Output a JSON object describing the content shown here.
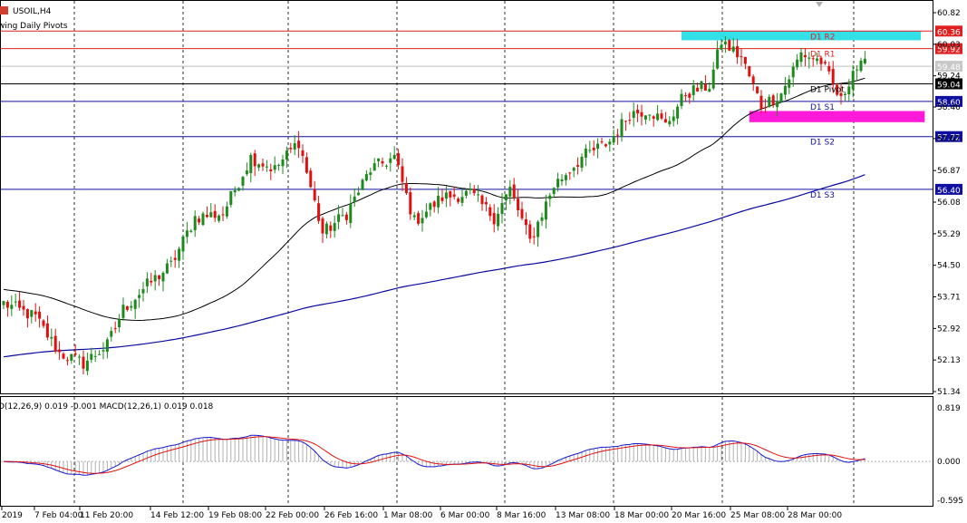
{
  "header": {
    "symbol": "USOIL,H4",
    "indicator": "wing Daily Pivots"
  },
  "macd_header": "D(12,26,9) 0.019 -0.001 MACD(12,26,1) 0.019 0.018",
  "colors": {
    "up": "#1e8a1e",
    "down": "#e01010",
    "ma_fast": "#000000",
    "ma_slow": "#0a0aa0",
    "resistance": "#e02020",
    "support": "#1010a0",
    "pivot": "#000000",
    "zone_top": "#33e0e8",
    "zone_bottom": "#ff1ad9",
    "macd_line": "#1a1acc",
    "signal_line": "#e01010",
    "hist": "#b0b0b0"
  },
  "chart_data": {
    "type": "candlestick",
    "price_axis": {
      "ticks": [
        "60.82",
        "60.03",
        "59.24",
        "58.46",
        "57.67",
        "56.87",
        "56.08",
        "55.29",
        "54.50",
        "53.71",
        "52.92",
        "52.13",
        "51.34"
      ]
    },
    "time_axis": {
      "labels": [
        "2019",
        "7 Feb 04:00",
        "11 Feb 20:00",
        "14 Feb 12:00",
        "19 Feb 08:00",
        "22 Feb 00:00",
        "26 Feb 16:00",
        "1 Mar 08:00",
        "6 Mar 00:00",
        "8 Mar 16:00",
        "13 Mar 08:00",
        "18 Mar 00:00",
        "20 Mar 16:00",
        "25 Mar 08:00",
        "28 Mar 00:00"
      ]
    },
    "pivot_lines": [
      {
        "name": "D1 R2",
        "value": 60.36,
        "label": "60.36",
        "role": "resistance"
      },
      {
        "name": "D1 R1",
        "value": 59.92,
        "label": "59.92",
        "role": "resistance"
      },
      {
        "name": "D1 Pivot",
        "value": 59.04,
        "label": "59.04",
        "role": "pivot"
      },
      {
        "name": "D1 S1",
        "value": 58.6,
        "label": "58.60",
        "role": "support"
      },
      {
        "name": "D1 S2",
        "value": 57.72,
        "label": "57.72",
        "role": "support"
      },
      {
        "name": "D1 S3",
        "value": 56.4,
        "label": "56.40",
        "role": "support"
      }
    ],
    "current_price": {
      "value": 59.48,
      "label": "59.48"
    },
    "zones": [
      {
        "role": "top",
        "from_index": 170,
        "to_index": 230,
        "low": 60.13,
        "high": 60.36
      },
      {
        "role": "bottom",
        "from_index": 187,
        "to_index": 231,
        "low": 58.08,
        "high": 58.36
      }
    ],
    "anchors": [
      [
        0,
        53.55
      ],
      [
        8,
        53.2
      ],
      [
        14,
        52.3
      ],
      [
        20,
        52.05
      ],
      [
        26,
        52.5
      ],
      [
        30,
        53.4
      ],
      [
        36,
        54.0
      ],
      [
        42,
        54.5
      ],
      [
        48,
        55.7
      ],
      [
        55,
        55.8
      ],
      [
        62,
        57.2
      ],
      [
        68,
        56.9
      ],
      [
        74,
        57.6
      ],
      [
        80,
        55.3
      ],
      [
        86,
        55.8
      ],
      [
        92,
        56.9
      ],
      [
        98,
        57.2
      ],
      [
        103,
        55.6
      ],
      [
        110,
        56.2
      ],
      [
        117,
        56.3
      ],
      [
        123,
        55.7
      ],
      [
        127,
        56.4
      ],
      [
        132,
        55.1
      ],
      [
        138,
        56.5
      ],
      [
        145,
        57.2
      ],
      [
        152,
        57.6
      ],
      [
        157,
        58.3
      ],
      [
        162,
        58.4
      ],
      [
        166,
        58.0
      ],
      [
        171,
        58.8
      ],
      [
        177,
        59.0
      ],
      [
        180,
        60.1
      ],
      [
        185,
        59.7
      ],
      [
        190,
        58.5
      ],
      [
        195,
        58.8
      ],
      [
        200,
        59.8
      ],
      [
        205,
        59.6
      ],
      [
        210,
        58.6
      ],
      [
        213,
        59.4
      ],
      [
        216,
        59.5
      ]
    ],
    "candle_count": 217,
    "ma_periods": [
      50,
      200
    ],
    "macd": {
      "params": "MACD(12,26,9)",
      "ticks": [
        "0.819",
        "0.000",
        "-0.595"
      ],
      "ylim": [
        -0.595,
        0.819
      ]
    }
  }
}
